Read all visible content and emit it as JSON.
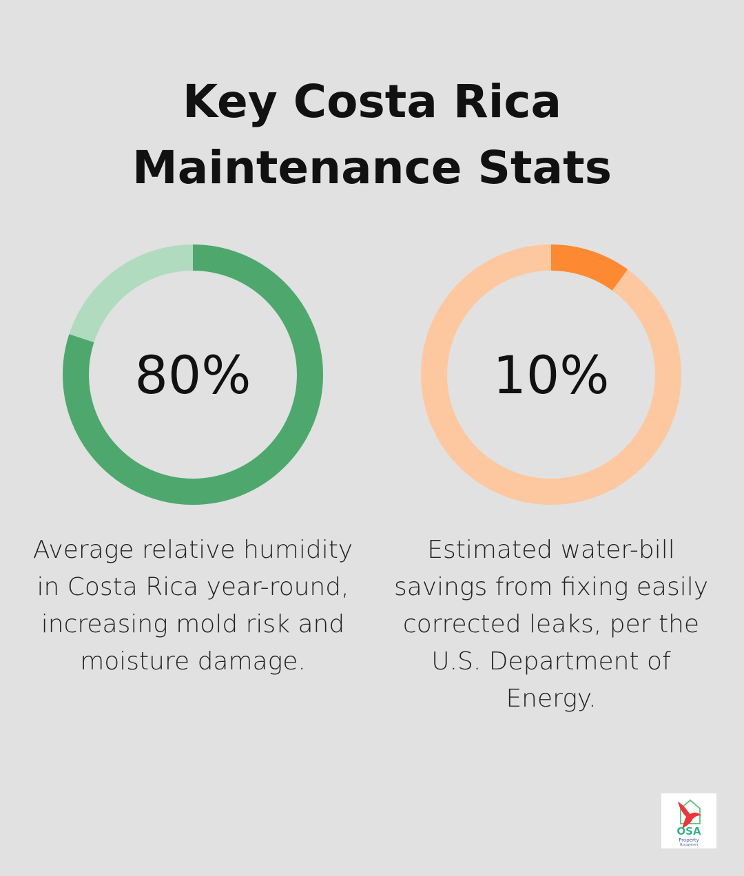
{
  "title_lines": [
    "Key Costa Rica",
    "Maintenance Stats"
  ],
  "chart_data": [
    {
      "type": "pie",
      "style": "donut",
      "value": 80,
      "max": 100,
      "label": "80%",
      "colors": {
        "filled": "#4ea86d",
        "remaining": "#b0dbbf"
      },
      "description": "Average relative humidity in Costa Rica year-round, increasing mold risk and moisture damage."
    },
    {
      "type": "pie",
      "style": "donut",
      "value": 10,
      "max": 100,
      "label": "10%",
      "colors": {
        "filled": "#fd8a32",
        "remaining": "#fdc8a0"
      },
      "description": "Estimated water-bill savings from fixing easily corrected leaks, per the U.S. Department of Energy."
    }
  ],
  "logo": {
    "text": "OSA",
    "subtext": "Property Management",
    "icon": "bird-house-logo"
  }
}
